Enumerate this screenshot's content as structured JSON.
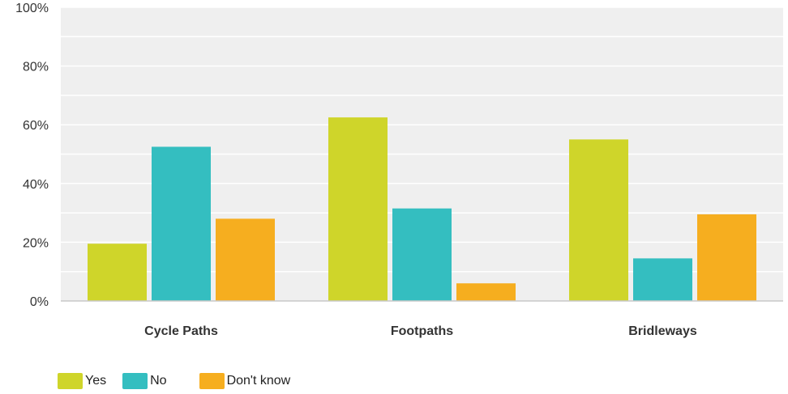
{
  "chart_data": {
    "type": "bar",
    "categories": [
      "Cycle Paths",
      "Footpaths",
      "Bridleways"
    ],
    "series": [
      {
        "name": "Yes",
        "values": [
          19.5,
          62.5,
          55
        ],
        "color": "#cfd52a"
      },
      {
        "name": "No",
        "values": [
          52.5,
          31.5,
          14.5
        ],
        "color": "#34bec0"
      },
      {
        "name": "Don't know",
        "values": [
          28,
          6,
          29.5
        ],
        "color": "#f6ae1f"
      }
    ],
    "yticks": [
      "0%",
      "20%",
      "40%",
      "60%",
      "80%",
      "100%"
    ],
    "ylim": [
      0,
      100
    ],
    "grid": true,
    "legend_position": "bottom-left",
    "background_color": "#efefef",
    "gridline_color": "#ffffff"
  }
}
